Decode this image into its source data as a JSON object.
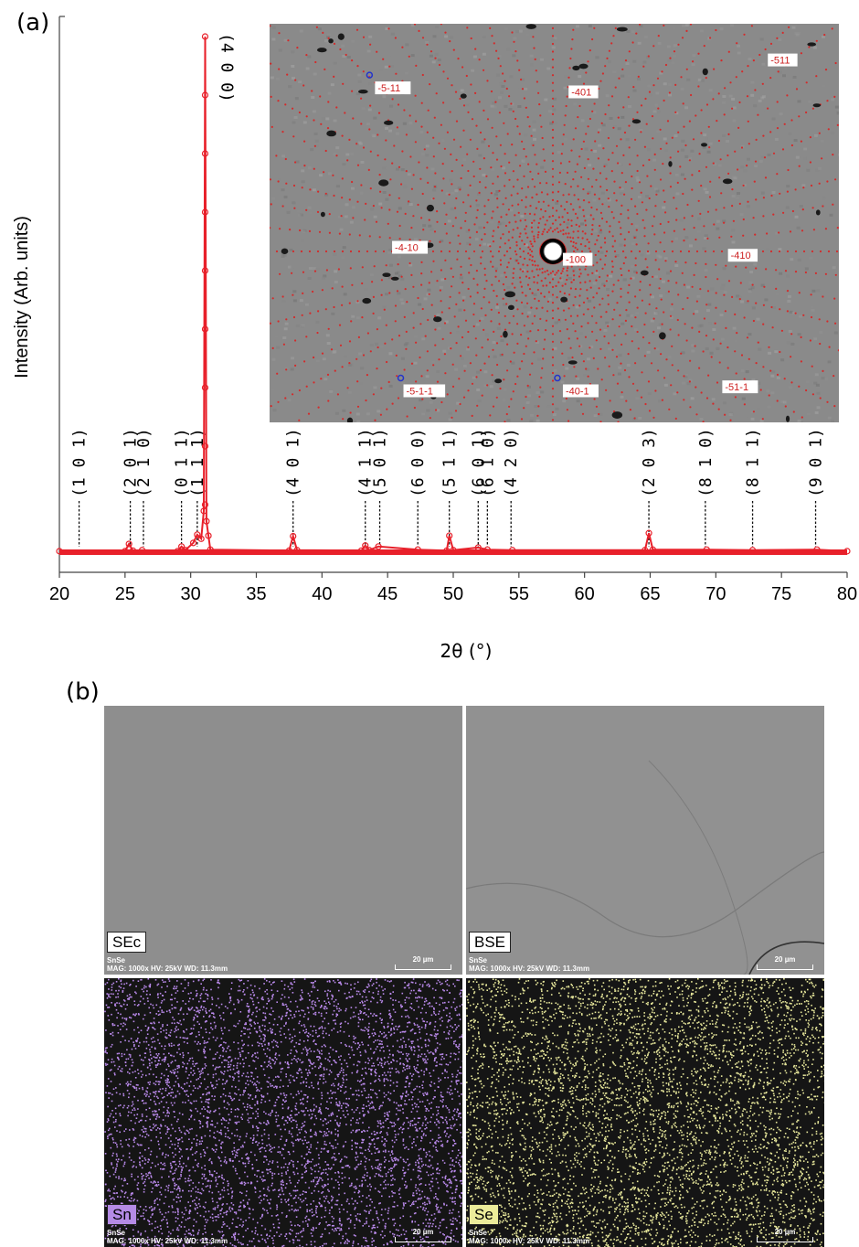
{
  "panel_a_label": "(a)",
  "panel_b_label": "(b)",
  "chart_data": {
    "type": "line",
    "xlabel": "2θ (°)",
    "ylabel": "Intensity (Arb. units)",
    "xlim": [
      20,
      80
    ],
    "ylim": [
      0,
      100
    ],
    "x_ticks": [
      20,
      25,
      30,
      35,
      40,
      45,
      50,
      55,
      60,
      65,
      70,
      75,
      80
    ],
    "series": [
      {
        "color": "#e8202a",
        "marker": "open-circle",
        "x": [
          20,
          25.0,
          25.3,
          25.6,
          26.3,
          29.0,
          29.3,
          29.6,
          30.2,
          30.5,
          30.8,
          31.0,
          31.1,
          31.2,
          31.35,
          31.5,
          37.5,
          37.8,
          38.1,
          43.0,
          43.3,
          43.6,
          44.3,
          47.3,
          49.5,
          49.7,
          50.0,
          51.9,
          52.6,
          54.5,
          64.6,
          64.9,
          65.2,
          69.3,
          72.8,
          77.7,
          80
        ],
        "y": [
          0.2,
          0.2,
          1.6,
          0.3,
          0.4,
          0.2,
          1.1,
          0.4,
          1.8,
          3.4,
          2.6,
          8.0,
          100,
          6.0,
          3.2,
          0.5,
          0.3,
          3.1,
          0.4,
          0.3,
          1.3,
          0.4,
          1.1,
          0.5,
          0.3,
          3.2,
          0.4,
          0.9,
          0.5,
          0.4,
          0.4,
          3.7,
          0.5,
          0.5,
          0.4,
          0.5,
          0.2
        ]
      }
    ],
    "annotations": [
      {
        "label": "(1 0 1)",
        "x": 21.5
      },
      {
        "label": "(2 0 1)",
        "x": 25.4
      },
      {
        "label": "(2 1 0)",
        "x": 26.4
      },
      {
        "label": "(0 1 1)",
        "x": 29.3
      },
      {
        "label": "(1 1 1)",
        "x": 30.5
      },
      {
        "label": "(4 0 0)",
        "x": 31.1
      },
      {
        "label": "(4 0 1)",
        "x": 37.8
      },
      {
        "label": "(4 1 1)",
        "x": 43.3
      },
      {
        "label": "(5 0 1)",
        "x": 44.4
      },
      {
        "label": "(6 0 0)",
        "x": 47.3
      },
      {
        "label": "(5 1 1)",
        "x": 49.7
      },
      {
        "label": "(6 0 1)",
        "x": 51.9
      },
      {
        "label": "(6 1 0)",
        "x": 52.6
      },
      {
        "label": "(4 2 0)",
        "x": 54.4
      },
      {
        "label": "(2 0 3)",
        "x": 64.9
      },
      {
        "label": "(8 1 0)",
        "x": 69.2
      },
      {
        "label": "(8 1 1)",
        "x": 72.8
      },
      {
        "label": "(9 0 1)",
        "x": 77.6
      }
    ]
  },
  "inset": {
    "labels": [
      {
        "text": "-5-11",
        "u": 0.19,
        "v": 0.17,
        "ring": true
      },
      {
        "text": "-401",
        "u": 0.53,
        "v": 0.18,
        "ring": false
      },
      {
        "text": "-511",
        "u": 0.88,
        "v": 0.1,
        "ring": false
      },
      {
        "text": "-4-10",
        "u": 0.22,
        "v": 0.57,
        "ring": false
      },
      {
        "text": "-100",
        "u": 0.52,
        "v": 0.6,
        "ring": false
      },
      {
        "text": "-410",
        "u": 0.81,
        "v": 0.59,
        "ring": false
      },
      {
        "text": "-5-1-1",
        "u": 0.24,
        "v": 0.93,
        "ring": true
      },
      {
        "text": "-40-1",
        "u": 0.52,
        "v": 0.93,
        "ring": true
      },
      {
        "text": "-51-1",
        "u": 0.8,
        "v": 0.92,
        "ring": false
      }
    ]
  },
  "sem": {
    "tiles": [
      {
        "tag": "SEc",
        "tag_bg": "#ffffff",
        "meta1": "SnSe",
        "meta2": "MAG: 1000x  HV: 25kV  WD: 11.3mm",
        "scale": "20 µm"
      },
      {
        "tag": "BSE",
        "tag_bg": "#ffffff",
        "meta1": "SnSe",
        "meta2": "MAG: 1000x  HV: 25kV  WD: 11.3mm",
        "scale": "20 µm"
      },
      {
        "tag": "Sn",
        "tag_bg": "#b58be6",
        "meta1": "SnSe",
        "meta2": "MAG: 1000x  HV: 25kV  WD: 11.3mm",
        "scale": "20 µm",
        "dot_color": "#b989ea"
      },
      {
        "tag": "Se",
        "tag_bg": "#ecec9a",
        "meta1": "SnSe",
        "meta2": "MAG: 1000x  HV: 25kV  WD: 11.3mm",
        "scale": "20 µm",
        "dot_color": "#e6e69a"
      }
    ]
  }
}
